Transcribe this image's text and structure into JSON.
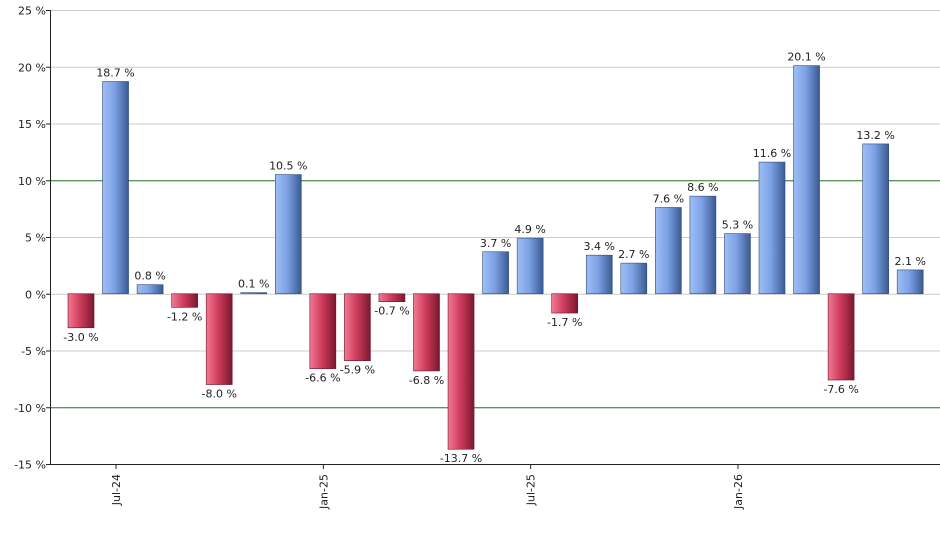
{
  "chart_data": {
    "type": "bar",
    "title": "",
    "xlabel": "",
    "ylabel": "",
    "ylim": [
      -15,
      25
    ],
    "y_ticks": [
      -15,
      -10,
      -5,
      0,
      5,
      10,
      15,
      20,
      25
    ],
    "y_tick_labels": [
      "-15 %",
      "-10 %",
      "-5 %",
      "0 %",
      "5 %",
      "10 %",
      "15 %",
      "20 %",
      "25 %"
    ],
    "x_tick_labels": [
      {
        "label": "Jul-24",
        "at_index": 1
      },
      {
        "label": "Jan-25",
        "at_index": 7
      },
      {
        "label": "Jul-25",
        "at_index": 13
      },
      {
        "label": "Jan-26",
        "at_index": 19
      }
    ],
    "values": [
      -3.0,
      18.7,
      0.8,
      -1.2,
      -8.0,
      0.1,
      10.5,
      -6.6,
      -5.9,
      -0.7,
      -6.8,
      -13.7,
      3.7,
      4.9,
      -1.7,
      3.4,
      2.7,
      7.6,
      8.6,
      5.3,
      11.6,
      20.1,
      -7.6,
      13.2,
      2.1
    ],
    "value_labels": [
      "-3.0 %",
      "18.7 %",
      "0.8 %",
      "-1.2 %",
      "-8.0 %",
      "0.1 %",
      "10.5 %",
      "-6.6 %",
      "-5.9 %",
      "-0.7 %",
      "-6.8 %",
      "-13.7 %",
      "3.7 %",
      "4.9 %",
      "-1.7 %",
      "3.4 %",
      "2.7 %",
      "7.6 %",
      "8.6 %",
      "5.3 %",
      "11.6 %",
      "20.1 %",
      "-7.6 %",
      "13.2 %",
      "2.1 %"
    ],
    "reference_lines": [
      10,
      -10
    ],
    "grid": true,
    "legend": "none",
    "colors": {
      "positive": "#6f93d8",
      "negative": "#c93554",
      "reference_line": "#2e7d32",
      "grid": "#cccccc",
      "axis": "#222222"
    }
  }
}
